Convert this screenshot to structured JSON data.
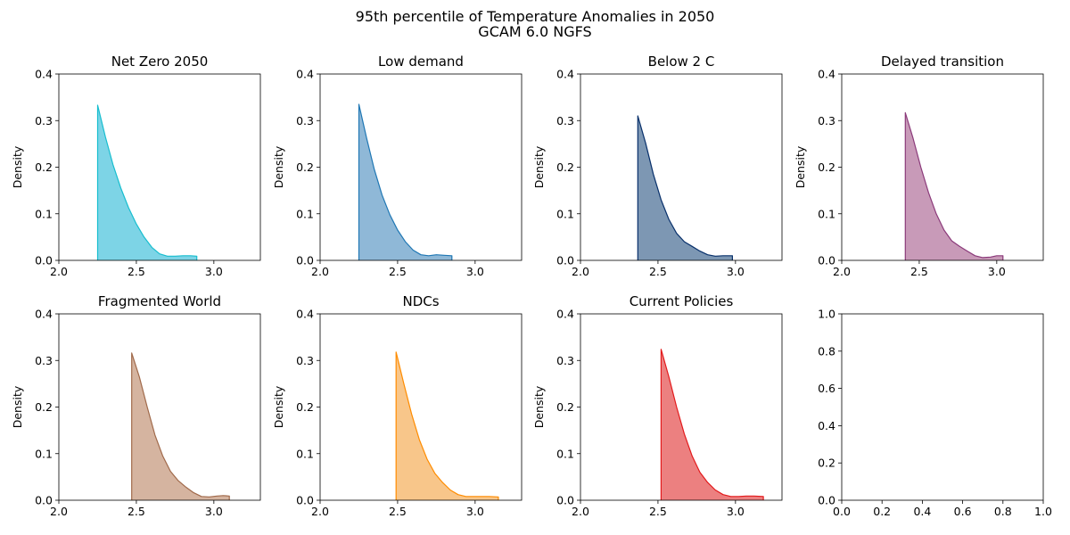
{
  "figure": {
    "title_line1": "95th percentile of Temperature Anomalies in 2050",
    "title_line2": "GCAM 6.0 NGFS"
  },
  "chart_data": [
    {
      "type": "area",
      "title": "Net Zero 2050",
      "ylabel": "Density",
      "xlim": [
        2.0,
        3.3
      ],
      "ylim": [
        0,
        0.4
      ],
      "xticks": [
        "2.0",
        "2.5",
        "3.0"
      ],
      "yticks": [
        "0.0",
        "0.1",
        "0.2",
        "0.3",
        "0.4"
      ],
      "color": "#17becf",
      "fill": "#7dd4e6",
      "x": [
        2.25,
        2.3,
        2.35,
        2.4,
        2.45,
        2.5,
        2.55,
        2.6,
        2.65,
        2.7,
        2.75,
        2.8,
        2.85,
        2.89
      ],
      "y": [
        0.333,
        0.265,
        0.205,
        0.155,
        0.113,
        0.078,
        0.05,
        0.028,
        0.014,
        0.009,
        0.009,
        0.01,
        0.01,
        0.009
      ]
    },
    {
      "type": "area",
      "title": "Low demand",
      "ylabel": "Density",
      "xlim": [
        2.0,
        3.3
      ],
      "ylim": [
        0,
        0.4
      ],
      "xticks": [
        "2.0",
        "2.5",
        "3.0"
      ],
      "yticks": [
        "0.0",
        "0.1",
        "0.2",
        "0.3",
        "0.4"
      ],
      "color": "#1f77b4",
      "fill": "#8fb8d7",
      "x": [
        2.25,
        2.3,
        2.35,
        2.4,
        2.45,
        2.5,
        2.55,
        2.6,
        2.65,
        2.7,
        2.75,
        2.8,
        2.85
      ],
      "y": [
        0.335,
        0.262,
        0.195,
        0.14,
        0.098,
        0.065,
        0.04,
        0.022,
        0.012,
        0.01,
        0.012,
        0.011,
        0.01
      ]
    },
    {
      "type": "area",
      "title": "Below 2 C",
      "ylabel": "Density",
      "xlim": [
        2.0,
        3.3
      ],
      "ylim": [
        0,
        0.4
      ],
      "xticks": [
        "2.0",
        "2.5",
        "3.0"
      ],
      "yticks": [
        "0.0",
        "0.1",
        "0.2",
        "0.3",
        "0.4"
      ],
      "color": "#08306b",
      "fill": "#7d97b3",
      "x": [
        2.37,
        2.42,
        2.47,
        2.52,
        2.57,
        2.62,
        2.67,
        2.72,
        2.77,
        2.82,
        2.87,
        2.92,
        2.98
      ],
      "y": [
        0.31,
        0.252,
        0.185,
        0.13,
        0.088,
        0.058,
        0.04,
        0.03,
        0.02,
        0.012,
        0.009,
        0.01,
        0.01
      ]
    },
    {
      "type": "area",
      "title": "Delayed transition",
      "ylabel": "Density",
      "xlim": [
        2.0,
        3.3
      ],
      "ylim": [
        0,
        0.4
      ],
      "xticks": [
        "2.0",
        "2.5",
        "3.0"
      ],
      "yticks": [
        "0.0",
        "0.1",
        "0.2",
        "0.3",
        "0.4"
      ],
      "color": "#8b3a7a",
      "fill": "#c89ab8",
      "x": [
        2.41,
        2.46,
        2.51,
        2.56,
        2.61,
        2.66,
        2.71,
        2.76,
        2.81,
        2.86,
        2.91,
        2.96,
        3.0,
        3.04
      ],
      "y": [
        0.317,
        0.262,
        0.2,
        0.145,
        0.1,
        0.065,
        0.042,
        0.03,
        0.02,
        0.01,
        0.006,
        0.007,
        0.01,
        0.01
      ]
    },
    {
      "type": "area",
      "title": "Fragmented World",
      "ylabel": "Density",
      "xlim": [
        2.0,
        3.3
      ],
      "ylim": [
        0,
        0.4
      ],
      "xticks": [
        "2.0",
        "2.5",
        "3.0"
      ],
      "yticks": [
        "0.0",
        "0.1",
        "0.2",
        "0.3",
        "0.4"
      ],
      "color": "#a0694a",
      "fill": "#d5b4a0",
      "x": [
        2.47,
        2.52,
        2.57,
        2.62,
        2.67,
        2.72,
        2.77,
        2.82,
        2.87,
        2.92,
        2.97,
        3.02,
        3.06,
        3.1
      ],
      "y": [
        0.316,
        0.264,
        0.2,
        0.14,
        0.095,
        0.062,
        0.042,
        0.028,
        0.016,
        0.008,
        0.007,
        0.009,
        0.01,
        0.009
      ]
    },
    {
      "type": "area",
      "title": "NDCs",
      "ylabel": "Density",
      "xlim": [
        2.0,
        3.3
      ],
      "ylim": [
        0,
        0.4
      ],
      "xticks": [
        "2.0",
        "2.5",
        "3.0"
      ],
      "yticks": [
        "0.0",
        "0.1",
        "0.2",
        "0.3",
        "0.4"
      ],
      "color": "#ff8c00",
      "fill": "#f8c68a",
      "x": [
        2.49,
        2.54,
        2.59,
        2.64,
        2.69,
        2.74,
        2.79,
        2.84,
        2.89,
        2.94,
        2.99,
        3.04,
        3.09,
        3.15
      ],
      "y": [
        0.318,
        0.25,
        0.185,
        0.13,
        0.088,
        0.058,
        0.038,
        0.022,
        0.012,
        0.008,
        0.008,
        0.008,
        0.008,
        0.007
      ]
    },
    {
      "type": "area",
      "title": "Current Policies",
      "ylabel": "Density",
      "xlim": [
        2.0,
        3.3
      ],
      "ylim": [
        0,
        0.4
      ],
      "xticks": [
        "2.0",
        "2.5",
        "3.0"
      ],
      "yticks": [
        "0.0",
        "0.1",
        "0.2",
        "0.3",
        "0.4"
      ],
      "color": "#e31a1c",
      "fill": "#ec8080",
      "x": [
        2.52,
        2.57,
        2.62,
        2.67,
        2.72,
        2.77,
        2.82,
        2.87,
        2.92,
        2.97,
        3.02,
        3.07,
        3.12,
        3.18
      ],
      "y": [
        0.324,
        0.265,
        0.2,
        0.142,
        0.095,
        0.06,
        0.038,
        0.022,
        0.012,
        0.008,
        0.008,
        0.009,
        0.009,
        0.008
      ]
    },
    {
      "type": "empty",
      "title": "",
      "ylabel": "",
      "xlim": [
        0.0,
        1.0
      ],
      "ylim": [
        0.0,
        1.0
      ],
      "xticks": [
        "0.0",
        "0.2",
        "0.4",
        "0.6",
        "0.8",
        "1.0"
      ],
      "yticks": [
        "0.0",
        "0.2",
        "0.4",
        "0.6",
        "0.8",
        "1.0"
      ],
      "color": "#000000",
      "fill": "none",
      "x": [],
      "y": []
    }
  ]
}
